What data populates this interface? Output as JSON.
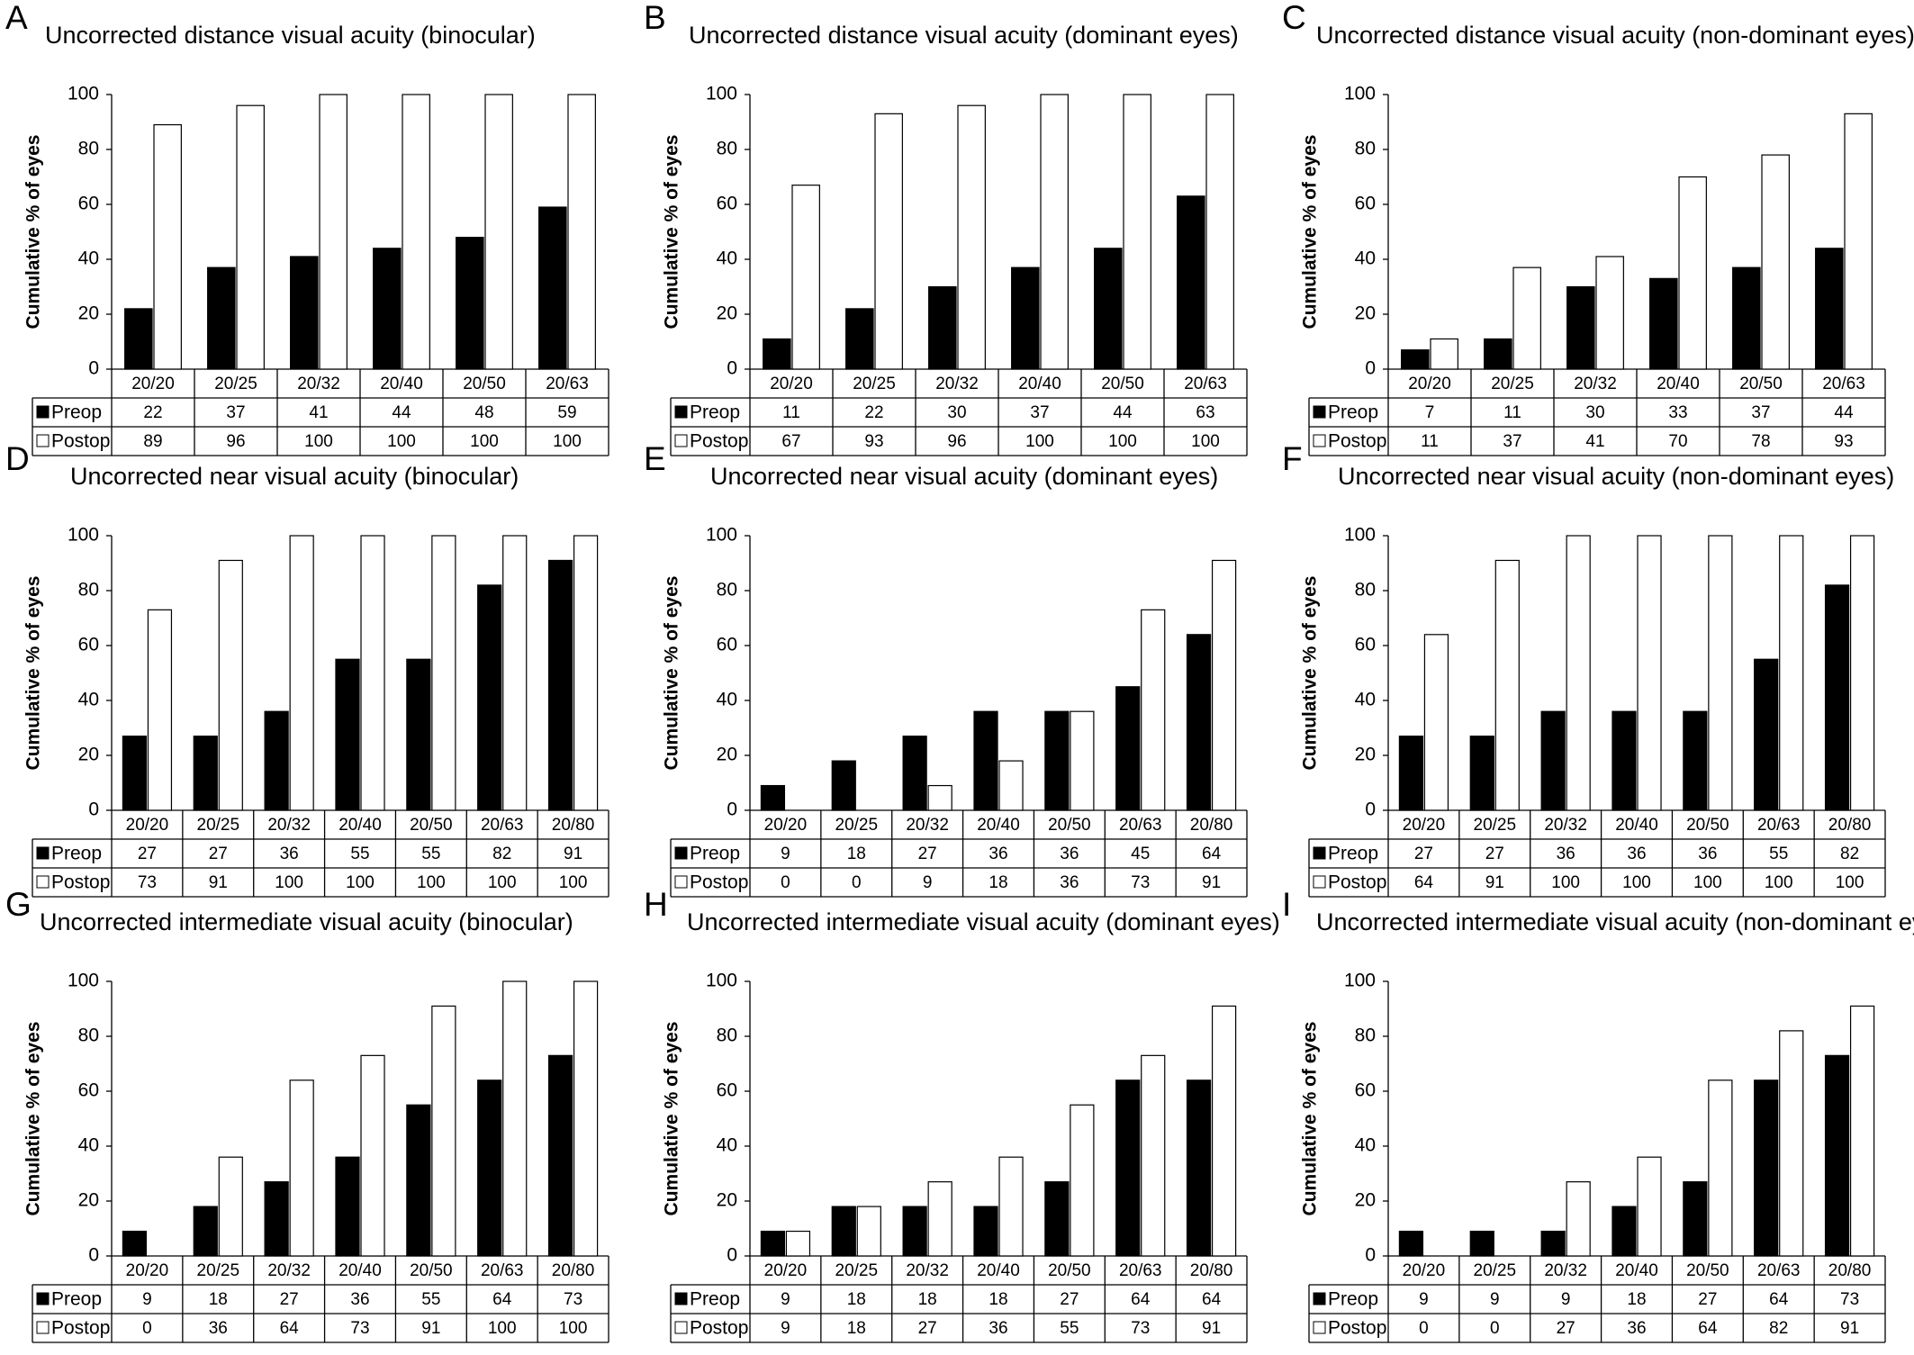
{
  "figure": {
    "ylabel": "Cumulative % of eyes",
    "legend": {
      "preop": "Preop",
      "postop": "Postop",
      "placement": "table-left"
    },
    "colors": {
      "preop": "#000000",
      "postop": "#ffffff",
      "axis": "#000000",
      "grid": "none"
    },
    "yticks": [
      "0",
      "20",
      "40",
      "60",
      "80",
      "100"
    ]
  },
  "chart_data": [
    {
      "type": "bar",
      "letter": "A",
      "title": "Uncorrected distance visual acuity (binocular)",
      "categories": [
        "20/20",
        "20/25",
        "20/32",
        "20/40",
        "20/50",
        "20/63"
      ],
      "series": [
        {
          "name": "Preop",
          "values": [
            22,
            37,
            41,
            44,
            48,
            59
          ]
        },
        {
          "name": "Postop",
          "values": [
            89,
            96,
            100,
            100,
            100,
            100
          ]
        }
      ],
      "ylabel": "Cumulative % of eyes",
      "ylim": [
        0,
        100
      ],
      "grid": false
    },
    {
      "type": "bar",
      "letter": "B",
      "title": "Uncorrected distance visual acuity (dominant eyes)",
      "categories": [
        "20/20",
        "20/25",
        "20/32",
        "20/40",
        "20/50",
        "20/63"
      ],
      "series": [
        {
          "name": "Preop",
          "values": [
            11,
            22,
            30,
            37,
            44,
            63
          ]
        },
        {
          "name": "Postop",
          "values": [
            67,
            93,
            96,
            100,
            100,
            100
          ]
        }
      ],
      "ylabel": "Cumulative % of eyes",
      "ylim": [
        0,
        100
      ],
      "grid": false
    },
    {
      "type": "bar",
      "letter": "C",
      "title": "Uncorrected distance visual acuity (non-dominant eyes)",
      "categories": [
        "20/20",
        "20/25",
        "20/32",
        "20/40",
        "20/50",
        "20/63"
      ],
      "series": [
        {
          "name": "Preop",
          "values": [
            7,
            11,
            30,
            33,
            37,
            44
          ]
        },
        {
          "name": "Postop",
          "values": [
            11,
            37,
            41,
            70,
            78,
            93
          ]
        }
      ],
      "ylabel": "Cumulative % of eyes",
      "ylim": [
        0,
        100
      ],
      "grid": false
    },
    {
      "type": "bar",
      "letter": "D",
      "title": "Uncorrected near visual acuity (binocular)",
      "categories": [
        "20/20",
        "20/25",
        "20/32",
        "20/40",
        "20/50",
        "20/63",
        "20/80"
      ],
      "series": [
        {
          "name": "Preop",
          "values": [
            27,
            27,
            36,
            55,
            55,
            82,
            91
          ]
        },
        {
          "name": "Postop",
          "values": [
            73,
            91,
            100,
            100,
            100,
            100,
            100
          ]
        }
      ],
      "ylabel": "Cumulative % of eyes",
      "ylim": [
        0,
        100
      ],
      "grid": false
    },
    {
      "type": "bar",
      "letter": "E",
      "title": "Uncorrected near visual acuity (dominant eyes)",
      "categories": [
        "20/20",
        "20/25",
        "20/32",
        "20/40",
        "20/50",
        "20/63",
        "20/80"
      ],
      "series": [
        {
          "name": "Preop",
          "values": [
            9,
            18,
            27,
            36,
            36,
            45,
            64
          ]
        },
        {
          "name": "Postop",
          "values": [
            0,
            0,
            9,
            18,
            36,
            73,
            91
          ]
        }
      ],
      "ylabel": "Cumulative % of eyes",
      "ylim": [
        0,
        100
      ],
      "grid": false
    },
    {
      "type": "bar",
      "letter": "F",
      "title": "Uncorrected near visual acuity (non-dominant eyes)",
      "categories": [
        "20/20",
        "20/25",
        "20/32",
        "20/40",
        "20/50",
        "20/63",
        "20/80"
      ],
      "series": [
        {
          "name": "Preop",
          "values": [
            27,
            27,
            36,
            36,
            36,
            55,
            82
          ]
        },
        {
          "name": "Postop",
          "values": [
            64,
            91,
            100,
            100,
            100,
            100,
            100
          ]
        }
      ],
      "ylabel": "Cumulative % of eyes",
      "ylim": [
        0,
        100
      ],
      "grid": false
    },
    {
      "type": "bar",
      "letter": "G",
      "title": "Uncorrected intermediate visual acuity (binocular)",
      "categories": [
        "20/20",
        "20/25",
        "20/32",
        "20/40",
        "20/50",
        "20/63",
        "20/80"
      ],
      "series": [
        {
          "name": "Preop",
          "values": [
            9,
            18,
            27,
            36,
            55,
            64,
            73
          ]
        },
        {
          "name": "Postop",
          "values": [
            0,
            36,
            64,
            73,
            91,
            100,
            100
          ]
        }
      ],
      "ylabel": "Cumulative % of eyes",
      "ylim": [
        0,
        100
      ],
      "grid": false
    },
    {
      "type": "bar",
      "letter": "H",
      "title": "Uncorrected intermediate visual acuity (dominant eyes)",
      "categories": [
        "20/20",
        "20/25",
        "20/32",
        "20/40",
        "20/50",
        "20/63",
        "20/80"
      ],
      "series": [
        {
          "name": "Preop",
          "values": [
            9,
            18,
            18,
            18,
            27,
            64,
            64
          ]
        },
        {
          "name": "Postop",
          "values": [
            9,
            18,
            27,
            36,
            55,
            73,
            91
          ]
        }
      ],
      "ylabel": "Cumulative % of eyes",
      "ylim": [
        0,
        100
      ],
      "grid": false
    },
    {
      "type": "bar",
      "letter": "I",
      "title": "Uncorrected intermediate visual acuity (non-dominant eyes)",
      "categories": [
        "20/20",
        "20/25",
        "20/32",
        "20/40",
        "20/50",
        "20/63",
        "20/80"
      ],
      "series": [
        {
          "name": "Preop",
          "values": [
            9,
            9,
            9,
            18,
            27,
            64,
            73
          ]
        },
        {
          "name": "Postop",
          "values": [
            0,
            0,
            27,
            36,
            64,
            82,
            91
          ]
        }
      ],
      "ylabel": "Cumulative % of eyes",
      "ylim": [
        0,
        100
      ],
      "grid": false
    }
  ]
}
